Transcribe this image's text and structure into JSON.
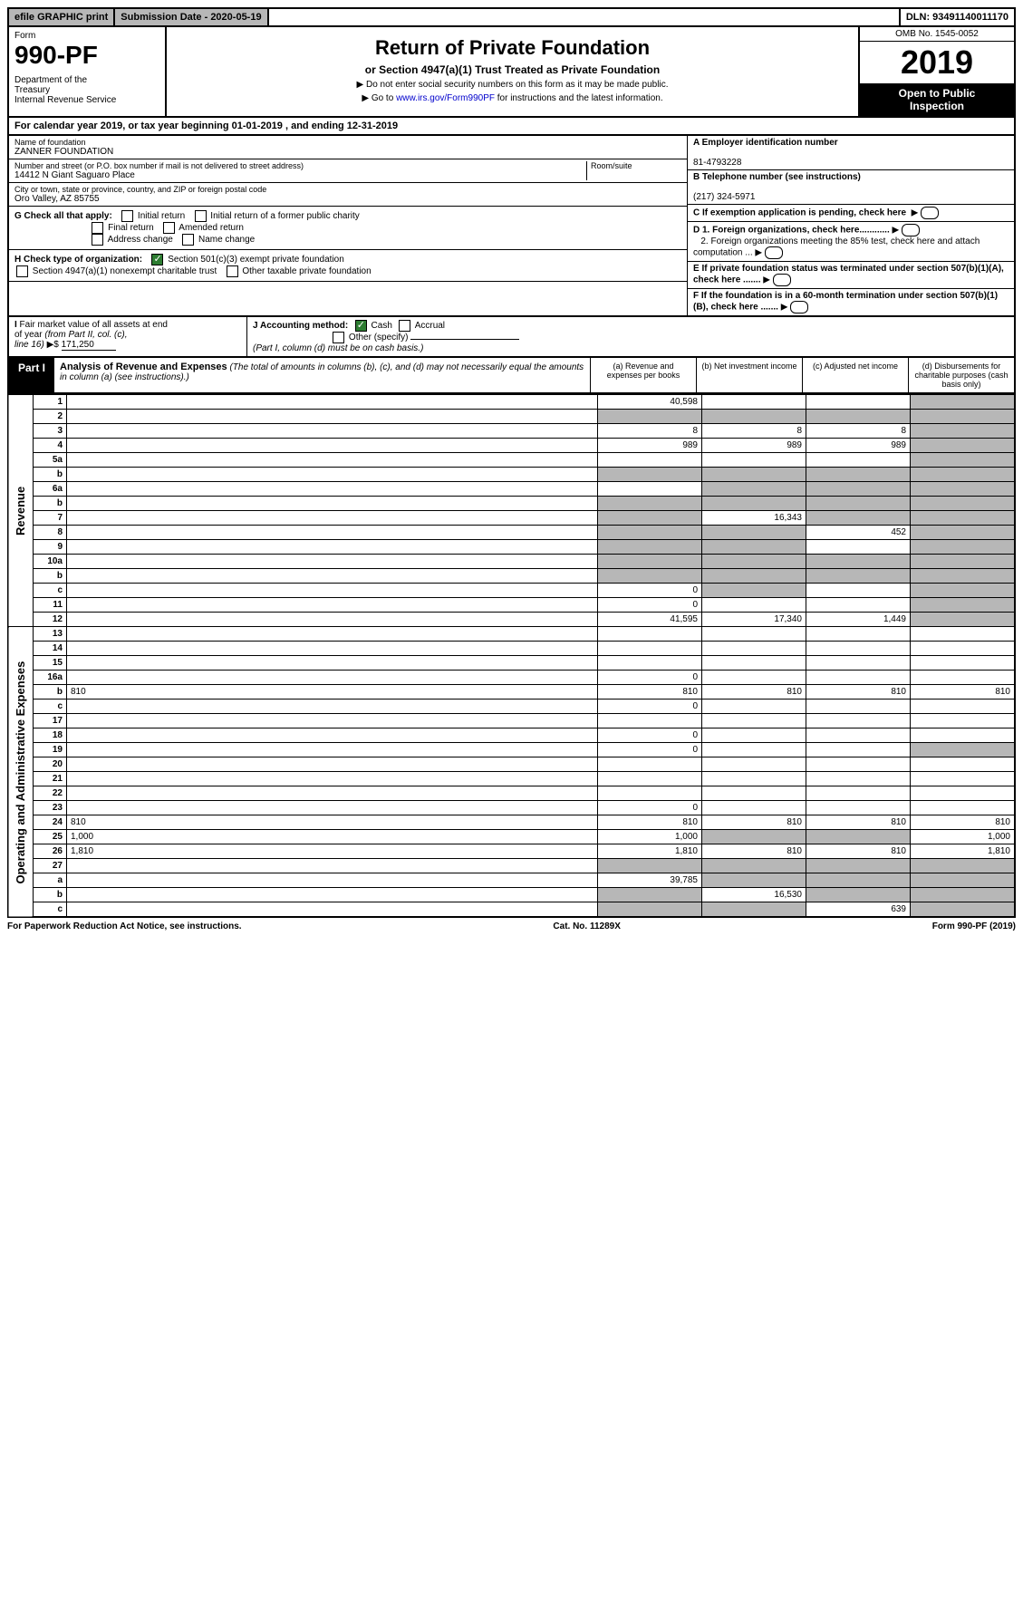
{
  "topbar": {
    "efile": "efile GRAPHIC print",
    "subdate": "Submission Date - 2020-05-19",
    "dln": "DLN: 93491140011170"
  },
  "header": {
    "form": "Form",
    "form_no": "990-PF",
    "dept": "Department of the Treasury\nInternal Revenue Service",
    "title": "Return of Private Foundation",
    "subtitle": "or Section 4947(a)(1) Trust Treated as Private Foundation",
    "note1": "▶ Do not enter social security numbers on this form as it may be made public.",
    "note2": "▶ Go to www.irs.gov/Form990PF for instructions and the latest information.",
    "link": "www.irs.gov/Form990PF",
    "omb": "OMB No. 1545-0052",
    "year": "2019",
    "inspect": "Open to Public Inspection"
  },
  "calendar": "For calendar year 2019, or tax year beginning 01-01-2019            , and ending 12-31-2019",
  "info": {
    "name_label": "Name of foundation",
    "name": "ZANNER FOUNDATION",
    "addr_label": "Number and street (or P.O. box number if mail is not delivered to street address)",
    "addr": "14412 N Giant Saguaro Place",
    "room_label": "Room/suite",
    "city_label": "City or town, state or province, country, and ZIP or foreign postal code",
    "city": "Oro Valley, AZ  85755",
    "ein_label": "A Employer identification number",
    "ein": "81-4793228",
    "phone_label": "B Telephone number (see instructions)",
    "phone": "(217) 324-5971",
    "c": "C If exemption application is pending, check here",
    "d1": "D 1. Foreign organizations, check here............",
    "d2": "2. Foreign organizations meeting the 85% test, check here and attach computation ...",
    "e": "E  If private foundation status was terminated under section 507(b)(1)(A), check here .......",
    "f": "F  If the foundation is in a 60-month termination under section 507(b)(1)(B), check here .......",
    "g": "G Check all that apply:",
    "g_opts": [
      "Initial return",
      "Initial return of a former public charity",
      "Final return",
      "Amended return",
      "Address change",
      "Name change"
    ],
    "h": "H Check type of organization:",
    "h1": "Section 501(c)(3) exempt private foundation",
    "h2": "Section 4947(a)(1) nonexempt charitable trust",
    "h3": "Other taxable private foundation",
    "i": "I Fair market value of all assets at end of year (from Part II, col. (c), line 16) ▶$",
    "i_val": "171,250",
    "j": "J Accounting method:",
    "j_cash": "Cash",
    "j_accrual": "Accrual",
    "j_other": "Other (specify)",
    "j_note": "(Part I, column (d) must be on cash basis.)"
  },
  "part1": {
    "label": "Part I",
    "title": "Analysis of Revenue and Expenses",
    "title_note": "(The total of amounts in columns (b), (c), and (d) may not necessarily equal the amounts in column (a) (see instructions).)",
    "cols": {
      "a": "(a)  Revenue and expenses per books",
      "b": "(b)  Net investment income",
      "c": "(c)  Adjusted net income",
      "d": "(d)  Disbursements for charitable purposes (cash basis only)"
    }
  },
  "sidelabels": {
    "rev": "Revenue",
    "exp": "Operating and Administrative Expenses"
  },
  "rows": [
    {
      "n": "1",
      "d": "",
      "a": "40,598",
      "b": "",
      "c": "",
      "grey": [
        "d"
      ]
    },
    {
      "n": "2",
      "d": "",
      "a": "",
      "b": "",
      "c": "",
      "grey": [
        "a",
        "b",
        "c",
        "d"
      ],
      "check": true
    },
    {
      "n": "3",
      "d": "",
      "a": "8",
      "b": "8",
      "c": "8",
      "grey": [
        "d"
      ]
    },
    {
      "n": "4",
      "d": "",
      "a": "989",
      "b": "989",
      "c": "989",
      "grey": [
        "d"
      ]
    },
    {
      "n": "5a",
      "d": "",
      "a": "",
      "b": "",
      "c": "",
      "grey": [
        "d"
      ]
    },
    {
      "n": "b",
      "d": "",
      "a": "",
      "b": "",
      "c": "",
      "grey": [
        "a",
        "b",
        "c",
        "d"
      ]
    },
    {
      "n": "6a",
      "d": "",
      "a": "",
      "b": "",
      "c": "",
      "grey": [
        "b",
        "c",
        "d"
      ]
    },
    {
      "n": "b",
      "d": "",
      "a": "",
      "b": "",
      "c": "",
      "grey": [
        "a",
        "b",
        "c",
        "d"
      ]
    },
    {
      "n": "7",
      "d": "",
      "a": "",
      "b": "16,343",
      "c": "",
      "grey": [
        "a",
        "c",
        "d"
      ]
    },
    {
      "n": "8",
      "d": "",
      "a": "",
      "b": "",
      "c": "452",
      "grey": [
        "a",
        "b",
        "d"
      ]
    },
    {
      "n": "9",
      "d": "",
      "a": "",
      "b": "",
      "c": "",
      "grey": [
        "a",
        "b",
        "d"
      ]
    },
    {
      "n": "10a",
      "d": "",
      "a": "",
      "b": "",
      "c": "",
      "grey": [
        "a",
        "b",
        "c",
        "d"
      ]
    },
    {
      "n": "b",
      "d": "",
      "a": "",
      "b": "",
      "c": "",
      "grey": [
        "a",
        "b",
        "c",
        "d"
      ]
    },
    {
      "n": "c",
      "d": "",
      "a": "0",
      "b": "",
      "c": "",
      "grey": [
        "b",
        "d"
      ]
    },
    {
      "n": "11",
      "d": "",
      "a": "0",
      "b": "",
      "c": "",
      "grey": [
        "d"
      ]
    },
    {
      "n": "12",
      "d": "",
      "a": "41,595",
      "b": "17,340",
      "c": "1,449",
      "grey": [
        "d"
      ]
    },
    {
      "n": "13",
      "d": "",
      "a": "",
      "b": "",
      "c": ""
    },
    {
      "n": "14",
      "d": "",
      "a": "",
      "b": "",
      "c": ""
    },
    {
      "n": "15",
      "d": "",
      "a": "",
      "b": "",
      "c": ""
    },
    {
      "n": "16a",
      "d": "",
      "a": "0",
      "b": "",
      "c": ""
    },
    {
      "n": "b",
      "d": "810",
      "a": "810",
      "b": "810",
      "c": "810"
    },
    {
      "n": "c",
      "d": "",
      "a": "0",
      "b": "",
      "c": ""
    },
    {
      "n": "17",
      "d": "",
      "a": "",
      "b": "",
      "c": ""
    },
    {
      "n": "18",
      "d": "",
      "a": "0",
      "b": "",
      "c": ""
    },
    {
      "n": "19",
      "d": "",
      "a": "0",
      "b": "",
      "c": "",
      "grey": [
        "d"
      ]
    },
    {
      "n": "20",
      "d": "",
      "a": "",
      "b": "",
      "c": ""
    },
    {
      "n": "21",
      "d": "",
      "a": "",
      "b": "",
      "c": ""
    },
    {
      "n": "22",
      "d": "",
      "a": "",
      "b": "",
      "c": ""
    },
    {
      "n": "23",
      "d": "",
      "a": "0",
      "b": "",
      "c": ""
    },
    {
      "n": "24",
      "d": "810",
      "a": "810",
      "b": "810",
      "c": "810"
    },
    {
      "n": "25",
      "d": "1,000",
      "a": "1,000",
      "b": "",
      "c": "",
      "grey": [
        "b",
        "c"
      ]
    },
    {
      "n": "26",
      "d": "1,810",
      "a": "1,810",
      "b": "810",
      "c": "810"
    },
    {
      "n": "27",
      "d": "",
      "a": "",
      "b": "",
      "c": "",
      "grey": [
        "a",
        "b",
        "c",
        "d"
      ]
    },
    {
      "n": "a",
      "d": "",
      "a": "39,785",
      "b": "",
      "c": "",
      "grey": [
        "b",
        "c",
        "d"
      ]
    },
    {
      "n": "b",
      "d": "",
      "a": "",
      "b": "16,530",
      "c": "",
      "grey": [
        "a",
        "c",
        "d"
      ]
    },
    {
      "n": "c",
      "d": "",
      "a": "",
      "b": "",
      "c": "639",
      "grey": [
        "a",
        "b",
        "d"
      ]
    }
  ],
  "footer": {
    "left": "For Paperwork Reduction Act Notice, see instructions.",
    "center": "Cat. No. 11289X",
    "right": "Form 990-PF (2019)"
  }
}
